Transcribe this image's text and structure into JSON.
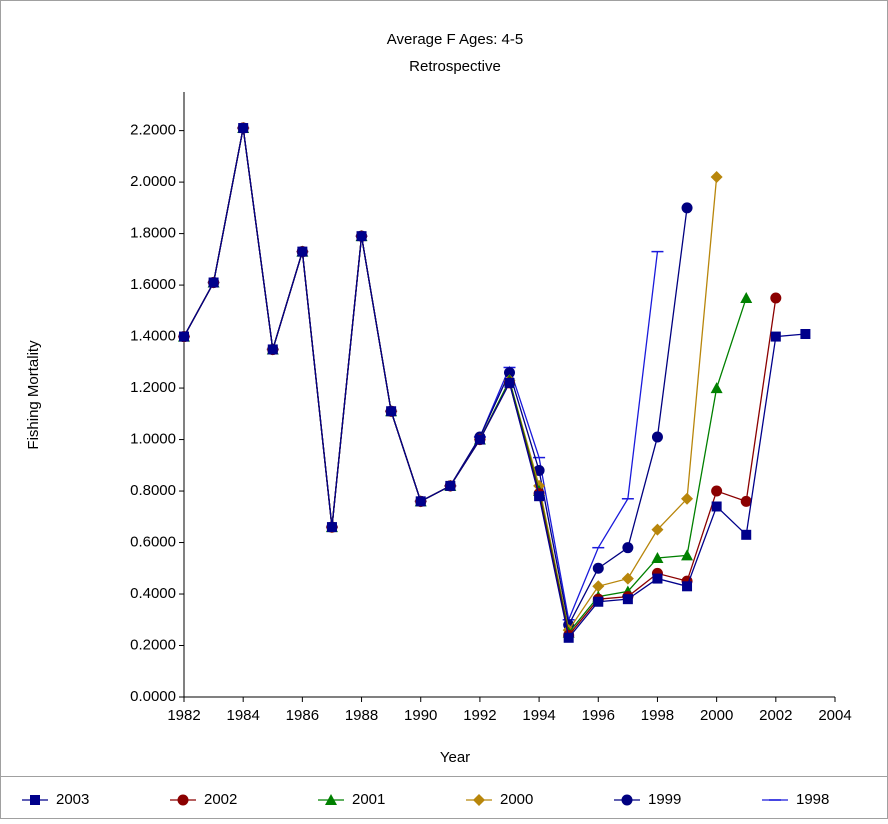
{
  "chart_data": {
    "type": "line",
    "title": "Average F Ages: 4-5",
    "subtitle": "Retrospective",
    "xlabel": "Year",
    "ylabel": "Fishing Mortality",
    "x": [
      1982,
      1983,
      1984,
      1985,
      1986,
      1987,
      1988,
      1989,
      1990,
      1991,
      1992,
      1993,
      1994,
      1995,
      1996,
      1997,
      1998,
      1999,
      2000,
      2001,
      2002,
      2003
    ],
    "series": [
      {
        "name": "2003",
        "color": "#00008b",
        "marker": "square",
        "values": [
          1.4,
          1.61,
          2.21,
          1.35,
          1.73,
          0.66,
          1.79,
          1.11,
          0.76,
          0.82,
          1.0,
          1.22,
          0.78,
          0.23,
          0.37,
          0.38,
          0.46,
          0.43,
          0.74,
          0.63,
          1.4,
          1.41
        ]
      },
      {
        "name": "2002",
        "color": "#8b0000",
        "marker": "circle",
        "values": [
          1.4,
          1.61,
          2.21,
          1.35,
          1.73,
          0.66,
          1.79,
          1.11,
          0.76,
          0.82,
          1.0,
          1.22,
          0.79,
          0.24,
          0.38,
          0.39,
          0.48,
          0.45,
          0.8,
          0.76,
          1.55,
          null
        ]
      },
      {
        "name": "2001",
        "color": "#008000",
        "marker": "triangle",
        "values": [
          1.4,
          1.61,
          2.21,
          1.35,
          1.73,
          0.66,
          1.79,
          1.11,
          0.76,
          0.82,
          1.0,
          1.23,
          0.8,
          0.25,
          0.39,
          0.41,
          0.54,
          0.55,
          1.2,
          1.55,
          null,
          null
        ]
      },
      {
        "name": "2000",
        "color": "#b8860b",
        "marker": "diamond",
        "values": [
          1.4,
          1.61,
          2.21,
          1.35,
          1.73,
          0.66,
          1.79,
          1.11,
          0.76,
          0.82,
          1.0,
          1.23,
          0.82,
          0.26,
          0.43,
          0.46,
          0.65,
          0.77,
          2.02,
          null,
          null,
          null
        ]
      },
      {
        "name": "1999",
        "color": "#000080",
        "marker": "circle",
        "values": [
          1.4,
          1.61,
          2.21,
          1.35,
          1.73,
          0.66,
          1.79,
          1.11,
          0.76,
          0.82,
          1.01,
          1.26,
          0.88,
          0.28,
          0.5,
          0.58,
          1.01,
          1.9,
          null,
          null,
          null,
          null
        ]
      },
      {
        "name": "1998",
        "color": "#1a1adb",
        "marker": "dash",
        "values": [
          1.4,
          1.61,
          2.21,
          1.35,
          1.73,
          0.66,
          1.79,
          1.11,
          0.76,
          0.82,
          1.01,
          1.28,
          0.93,
          0.3,
          0.58,
          0.77,
          1.73,
          null,
          null,
          null,
          null,
          null
        ]
      }
    ],
    "xlim": [
      1982,
      2004
    ],
    "xticks": [
      1982,
      1984,
      1986,
      1988,
      1990,
      1992,
      1994,
      1996,
      1998,
      2000,
      2002,
      2004
    ],
    "ylim": [
      0,
      2.35
    ],
    "yticks": [
      {
        "value": 0,
        "label": "0.0000"
      },
      {
        "value": 0.2,
        "label": "0.2000"
      },
      {
        "value": 0.4,
        "label": "0.4000"
      },
      {
        "value": 0.6,
        "label": "0.6000"
      },
      {
        "value": 0.8,
        "label": "0.8000"
      },
      {
        "value": 1.0,
        "label": "1.0000"
      },
      {
        "value": 1.2,
        "label": "1.2000"
      },
      {
        "value": 1.4,
        "label": "1.4000"
      },
      {
        "value": 1.6,
        "label": "1.6000"
      },
      {
        "value": 1.8,
        "label": "1.8000"
      },
      {
        "value": 2.0,
        "label": "2.0000"
      },
      {
        "value": 2.2,
        "label": "2.2000"
      }
    ],
    "grid": false,
    "legend": "bottom"
  }
}
